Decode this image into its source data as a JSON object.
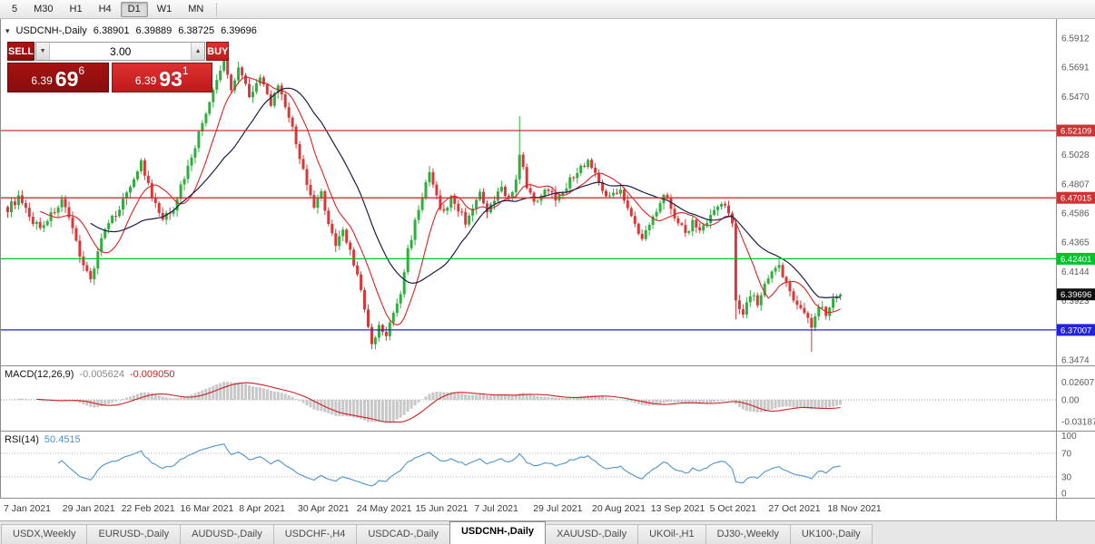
{
  "toolbar": {
    "timeframes": [
      {
        "label": "5",
        "active": false
      },
      {
        "label": "M30",
        "active": false
      },
      {
        "label": "H1",
        "active": false
      },
      {
        "label": "H4",
        "active": false
      },
      {
        "label": "D1",
        "active": true
      },
      {
        "label": "W1",
        "active": false
      },
      {
        "label": "MN",
        "active": false
      }
    ]
  },
  "chart": {
    "symbol": "USDCNH-,Daily",
    "open": "6.38901",
    "high": "6.39889",
    "low": "6.38725",
    "close": "6.39696"
  },
  "one_click": {
    "sell_label": "SELL",
    "buy_label": "BUY",
    "volume": "3.00",
    "sell_price": {
      "small": "6.39",
      "big": "69",
      "sup": "6"
    },
    "buy_price": {
      "small": "6.39",
      "big": "93",
      "sup": "1"
    }
  },
  "chart_data": {
    "type": "candlestick",
    "title": "USDCNH-,Daily",
    "x_labels": [
      "7 Jan 2021",
      "29 Jan 2021",
      "22 Feb 2021",
      "16 Mar 2021",
      "8 Apr 2021",
      "30 Apr 2021",
      "24 May 2021",
      "15 Jun 2021",
      "7 Jul 2021",
      "29 Jul 2021",
      "20 Aug 2021",
      "13 Sep 2021",
      "5 Oct 2021",
      "27 Oct 2021",
      "18 Nov 2021"
    ],
    "y_axis": {
      "min": 6.3432,
      "max": 6.6056,
      "ticks": [
        6.5912,
        6.5691,
        6.547,
        6.5028,
        6.4807,
        6.4586,
        6.4365,
        6.4144,
        6.3923,
        6.3474
      ]
    },
    "colors": {
      "up": "#2fae3e",
      "down": "#da3838",
      "ma_fast": "#dd2222",
      "ma_slow": "#1c1c46",
      "macd_bar": "#c8c8c8",
      "macd_signal": "#cc2222",
      "rsi_line": "#4d94cc"
    },
    "candles": {
      "count": 232,
      "noise": 0.0028,
      "anchors": [
        [
          0,
          6.462
        ],
        [
          3,
          6.47
        ],
        [
          6,
          6.455
        ],
        [
          9,
          6.448
        ],
        [
          12,
          6.457
        ],
        [
          15,
          6.468
        ],
        [
          18,
          6.445
        ],
        [
          21,
          6.42
        ],
        [
          23,
          6.408
        ],
        [
          26,
          6.44
        ],
        [
          29,
          6.454
        ],
        [
          32,
          6.468
        ],
        [
          35,
          6.486
        ],
        [
          37,
          6.497
        ],
        [
          40,
          6.47
        ],
        [
          43,
          6.453
        ],
        [
          46,
          6.463
        ],
        [
          49,
          6.486
        ],
        [
          52,
          6.51
        ],
        [
          55,
          6.535
        ],
        [
          58,
          6.558
        ],
        [
          60,
          6.576
        ],
        [
          62,
          6.552
        ],
        [
          64,
          6.57
        ],
        [
          67,
          6.549
        ],
        [
          70,
          6.56
        ],
        [
          73,
          6.542
        ],
        [
          75,
          6.553
        ],
        [
          78,
          6.532
        ],
        [
          81,
          6.502
        ],
        [
          83,
          6.478
        ],
        [
          85,
          6.463
        ],
        [
          87,
          6.473
        ],
        [
          89,
          6.452
        ],
        [
          91,
          6.434
        ],
        [
          93,
          6.446
        ],
        [
          95,
          6.43
        ],
        [
          97,
          6.412
        ],
        [
          99,
          6.385
        ],
        [
          101,
          6.358
        ],
        [
          103,
          6.372
        ],
        [
          105,
          6.366
        ],
        [
          107,
          6.382
        ],
        [
          109,
          6.398
        ],
        [
          111,
          6.43
        ],
        [
          113,
          6.452
        ],
        [
          115,
          6.472
        ],
        [
          117,
          6.488
        ],
        [
          119,
          6.47
        ],
        [
          121,
          6.458
        ],
        [
          123,
          6.47
        ],
        [
          125,
          6.462
        ],
        [
          127,
          6.452
        ],
        [
          129,
          6.464
        ],
        [
          131,
          6.472
        ],
        [
          133,
          6.458
        ],
        [
          135,
          6.468
        ],
        [
          137,
          6.478
        ],
        [
          139,
          6.47
        ],
        [
          141,
          6.482
        ],
        [
          142,
          6.502
        ],
        [
          144,
          6.48
        ],
        [
          146,
          6.465
        ],
        [
          149,
          6.478
        ],
        [
          152,
          6.47
        ],
        [
          155,
          6.48
        ],
        [
          158,
          6.49
        ],
        [
          161,
          6.499
        ],
        [
          164,
          6.482
        ],
        [
          167,
          6.47
        ],
        [
          170,
          6.478
        ],
        [
          173,
          6.455
        ],
        [
          176,
          6.438
        ],
        [
          178,
          6.45
        ],
        [
          180,
          6.462
        ],
        [
          182,
          6.475
        ],
        [
          184,
          6.462
        ],
        [
          186,
          6.452
        ],
        [
          188,
          6.443
        ],
        [
          190,
          6.452
        ],
        [
          192,
          6.446
        ],
        [
          194,
          6.453
        ],
        [
          196,
          6.46
        ],
        [
          198,
          6.466
        ],
        [
          200,
          6.458
        ],
        [
          201,
          6.452
        ],
        [
          202,
          6.395
        ],
        [
          204,
          6.382
        ],
        [
          206,
          6.398
        ],
        [
          208,
          6.39
        ],
        [
          210,
          6.403
        ],
        [
          212,
          6.412
        ],
        [
          214,
          6.418
        ],
        [
          216,
          6.405
        ],
        [
          218,
          6.395
        ],
        [
          220,
          6.385
        ],
        [
          222,
          6.38
        ],
        [
          223,
          6.372
        ],
        [
          225,
          6.39
        ],
        [
          227,
          6.383
        ],
        [
          229,
          6.394
        ],
        [
          231,
          6.39696
        ]
      ],
      "spikes": [
        {
          "i": 24,
          "low": 6.404
        },
        {
          "i": 60,
          "high": 6.585
        },
        {
          "i": 101,
          "low": 6.3555
        },
        {
          "i": 142,
          "high": 6.532
        },
        {
          "i": 202,
          "low": 6.378
        },
        {
          "i": 223,
          "low": 6.3535
        }
      ]
    },
    "overlays": [
      {
        "name": "ma-fast",
        "type": "sma",
        "period": 10
      },
      {
        "name": "ma-slow",
        "type": "sma",
        "period": 24
      }
    ],
    "hlines": [
      {
        "price": 6.52109,
        "label": "6.52109",
        "color": "#cc3333"
      },
      {
        "price": 6.47015,
        "label": "6.47015",
        "color": "#cc3333"
      },
      {
        "price": 6.42401,
        "label": "6.42401",
        "color": "#00c32a"
      },
      {
        "price": 6.37007,
        "label": "6.37007",
        "color": "#2222dd"
      }
    ],
    "current_price": {
      "value": 6.39696,
      "label": "6.39696",
      "color": "#101010"
    },
    "macd": {
      "name": "MACD(12,26,9)",
      "values": [
        "-0.005624",
        "-0.009050"
      ],
      "params": {
        "fast": 12,
        "slow": 26,
        "signal": 9
      },
      "ticks": [
        {
          "label": "0.02607",
          "value": 0.02607
        },
        {
          "label": "0.00",
          "value": 0
        },
        {
          "label": "-0.03187",
          "value": -0.03187
        }
      ]
    },
    "rsi": {
      "name": "RSI(14)",
      "value": "50.4515",
      "period": 14,
      "levels": [
        70,
        30
      ],
      "ticks": [
        {
          "label": "100",
          "value": 100
        },
        {
          "label": "70",
          "value": 70
        },
        {
          "label": "30",
          "value": 30
        },
        {
          "label": "0",
          "value": 0
        }
      ]
    }
  },
  "tabs": {
    "items": [
      "USDX,Weekly",
      "EURUSD-,Daily",
      "AUDUSD-,Daily",
      "USDCHF-,H4",
      "USDCAD-,Daily",
      "USDCNH-,Daily",
      "XAUUSD-,Daily",
      "UKOil-,H1",
      "DJ30-,Weekly",
      "UK100-,Daily"
    ],
    "active_index": 5
  }
}
